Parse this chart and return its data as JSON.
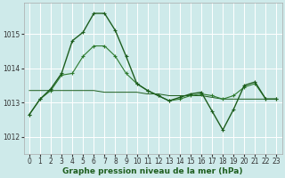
{
  "background_color": "#ceeaea",
  "grid_color": "#ffffff",
  "line_color_dark": "#1e5e1e",
  "line_color_mid": "#2d7a2d",
  "xlabel": "Graphe pression niveau de la mer (hPa)",
  "xlabel_fontsize": 6.5,
  "tick_fontsize": 5.5,
  "yticks": [
    1012,
    1013,
    1014,
    1015
  ],
  "ylim": [
    1011.5,
    1015.9
  ],
  "xlim": [
    -0.5,
    23.5
  ],
  "xticks": [
    0,
    1,
    2,
    3,
    4,
    5,
    6,
    7,
    8,
    9,
    10,
    11,
    12,
    13,
    14,
    15,
    16,
    17,
    18,
    19,
    20,
    21,
    22,
    23
  ],
  "s1_x": [
    0,
    1,
    2,
    3,
    4,
    5,
    6,
    7,
    8,
    9,
    10,
    11,
    12,
    13,
    14,
    15,
    16,
    17,
    18,
    19,
    20,
    21,
    22,
    23
  ],
  "s1_y": [
    1012.65,
    1013.1,
    1013.4,
    1013.85,
    1014.8,
    1015.05,
    1015.6,
    1015.6,
    1015.1,
    1014.35,
    1013.55,
    1013.35,
    1013.2,
    1013.05,
    1013.15,
    1013.25,
    1013.3,
    1012.75,
    1012.2,
    1012.8,
    1013.5,
    1013.6,
    1013.1,
    1013.1
  ],
  "s2_x": [
    0,
    1,
    2,
    3,
    4,
    5,
    6,
    7,
    8,
    9,
    10,
    11,
    12,
    13,
    14,
    15,
    16,
    17,
    18,
    19,
    20,
    21,
    22,
    23
  ],
  "s2_y": [
    1012.65,
    1013.1,
    1013.35,
    1013.8,
    1013.85,
    1014.35,
    1014.65,
    1014.65,
    1014.35,
    1013.85,
    1013.55,
    1013.35,
    1013.2,
    1013.05,
    1013.1,
    1013.2,
    1013.25,
    1013.2,
    1013.1,
    1013.2,
    1013.45,
    1013.55,
    1013.1,
    1013.1
  ],
  "s3_x": [
    0,
    1,
    2,
    3,
    4,
    5,
    6,
    7,
    8,
    9,
    10,
    11,
    12,
    13,
    14,
    15,
    16,
    17,
    18,
    19,
    20,
    21,
    22,
    23
  ],
  "s3_y": [
    1013.35,
    1013.35,
    1013.35,
    1013.35,
    1013.35,
    1013.35,
    1013.35,
    1013.3,
    1013.3,
    1013.3,
    1013.3,
    1013.25,
    1013.25,
    1013.2,
    1013.2,
    1013.2,
    1013.2,
    1013.15,
    1013.1,
    1013.1,
    1013.1,
    1013.1,
    1013.1,
    1013.1
  ]
}
